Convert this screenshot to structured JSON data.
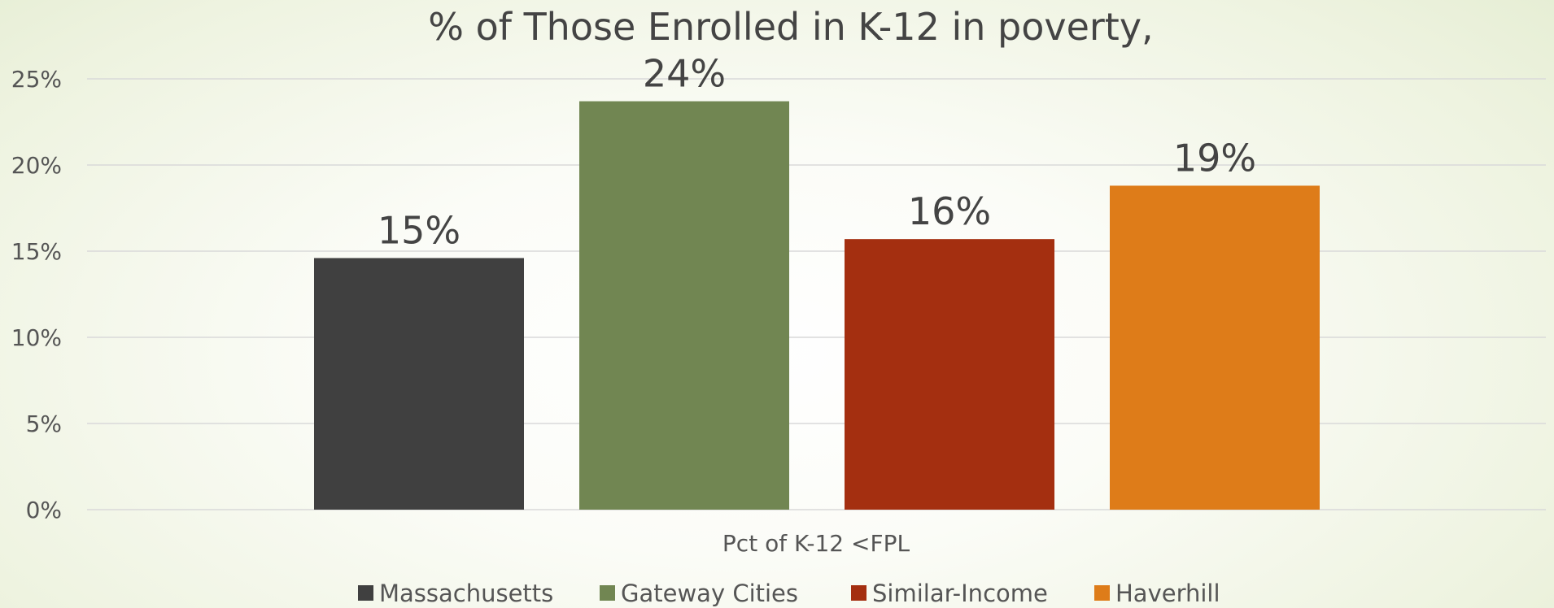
{
  "chart_data": {
    "type": "bar",
    "title": "% of Those Enrolled in K-12 in poverty,",
    "categories": [
      "Pct of K-12 <FPL"
    ],
    "xlabel": "Pct of K-12 <FPL",
    "ylabel": "",
    "ylim": [
      0,
      25
    ],
    "yticks": [
      "0%",
      "5%",
      "10%",
      "15%",
      "20%",
      "25%"
    ],
    "grid": true,
    "legend_position": "bottom",
    "series": [
      {
        "name": "Massachusetts",
        "values": [
          14.6
        ],
        "label": "15%",
        "color": "#404040"
      },
      {
        "name": "Gateway Cities",
        "values": [
          23.7
        ],
        "label": "24%",
        "color": "#718652"
      },
      {
        "name": "Similar-Income",
        "values": [
          15.7
        ],
        "label": "16%",
        "color": "#a42f10"
      },
      {
        "name": "Haverhill",
        "values": [
          18.8
        ],
        "label": "19%",
        "color": "#de7c19"
      }
    ]
  }
}
